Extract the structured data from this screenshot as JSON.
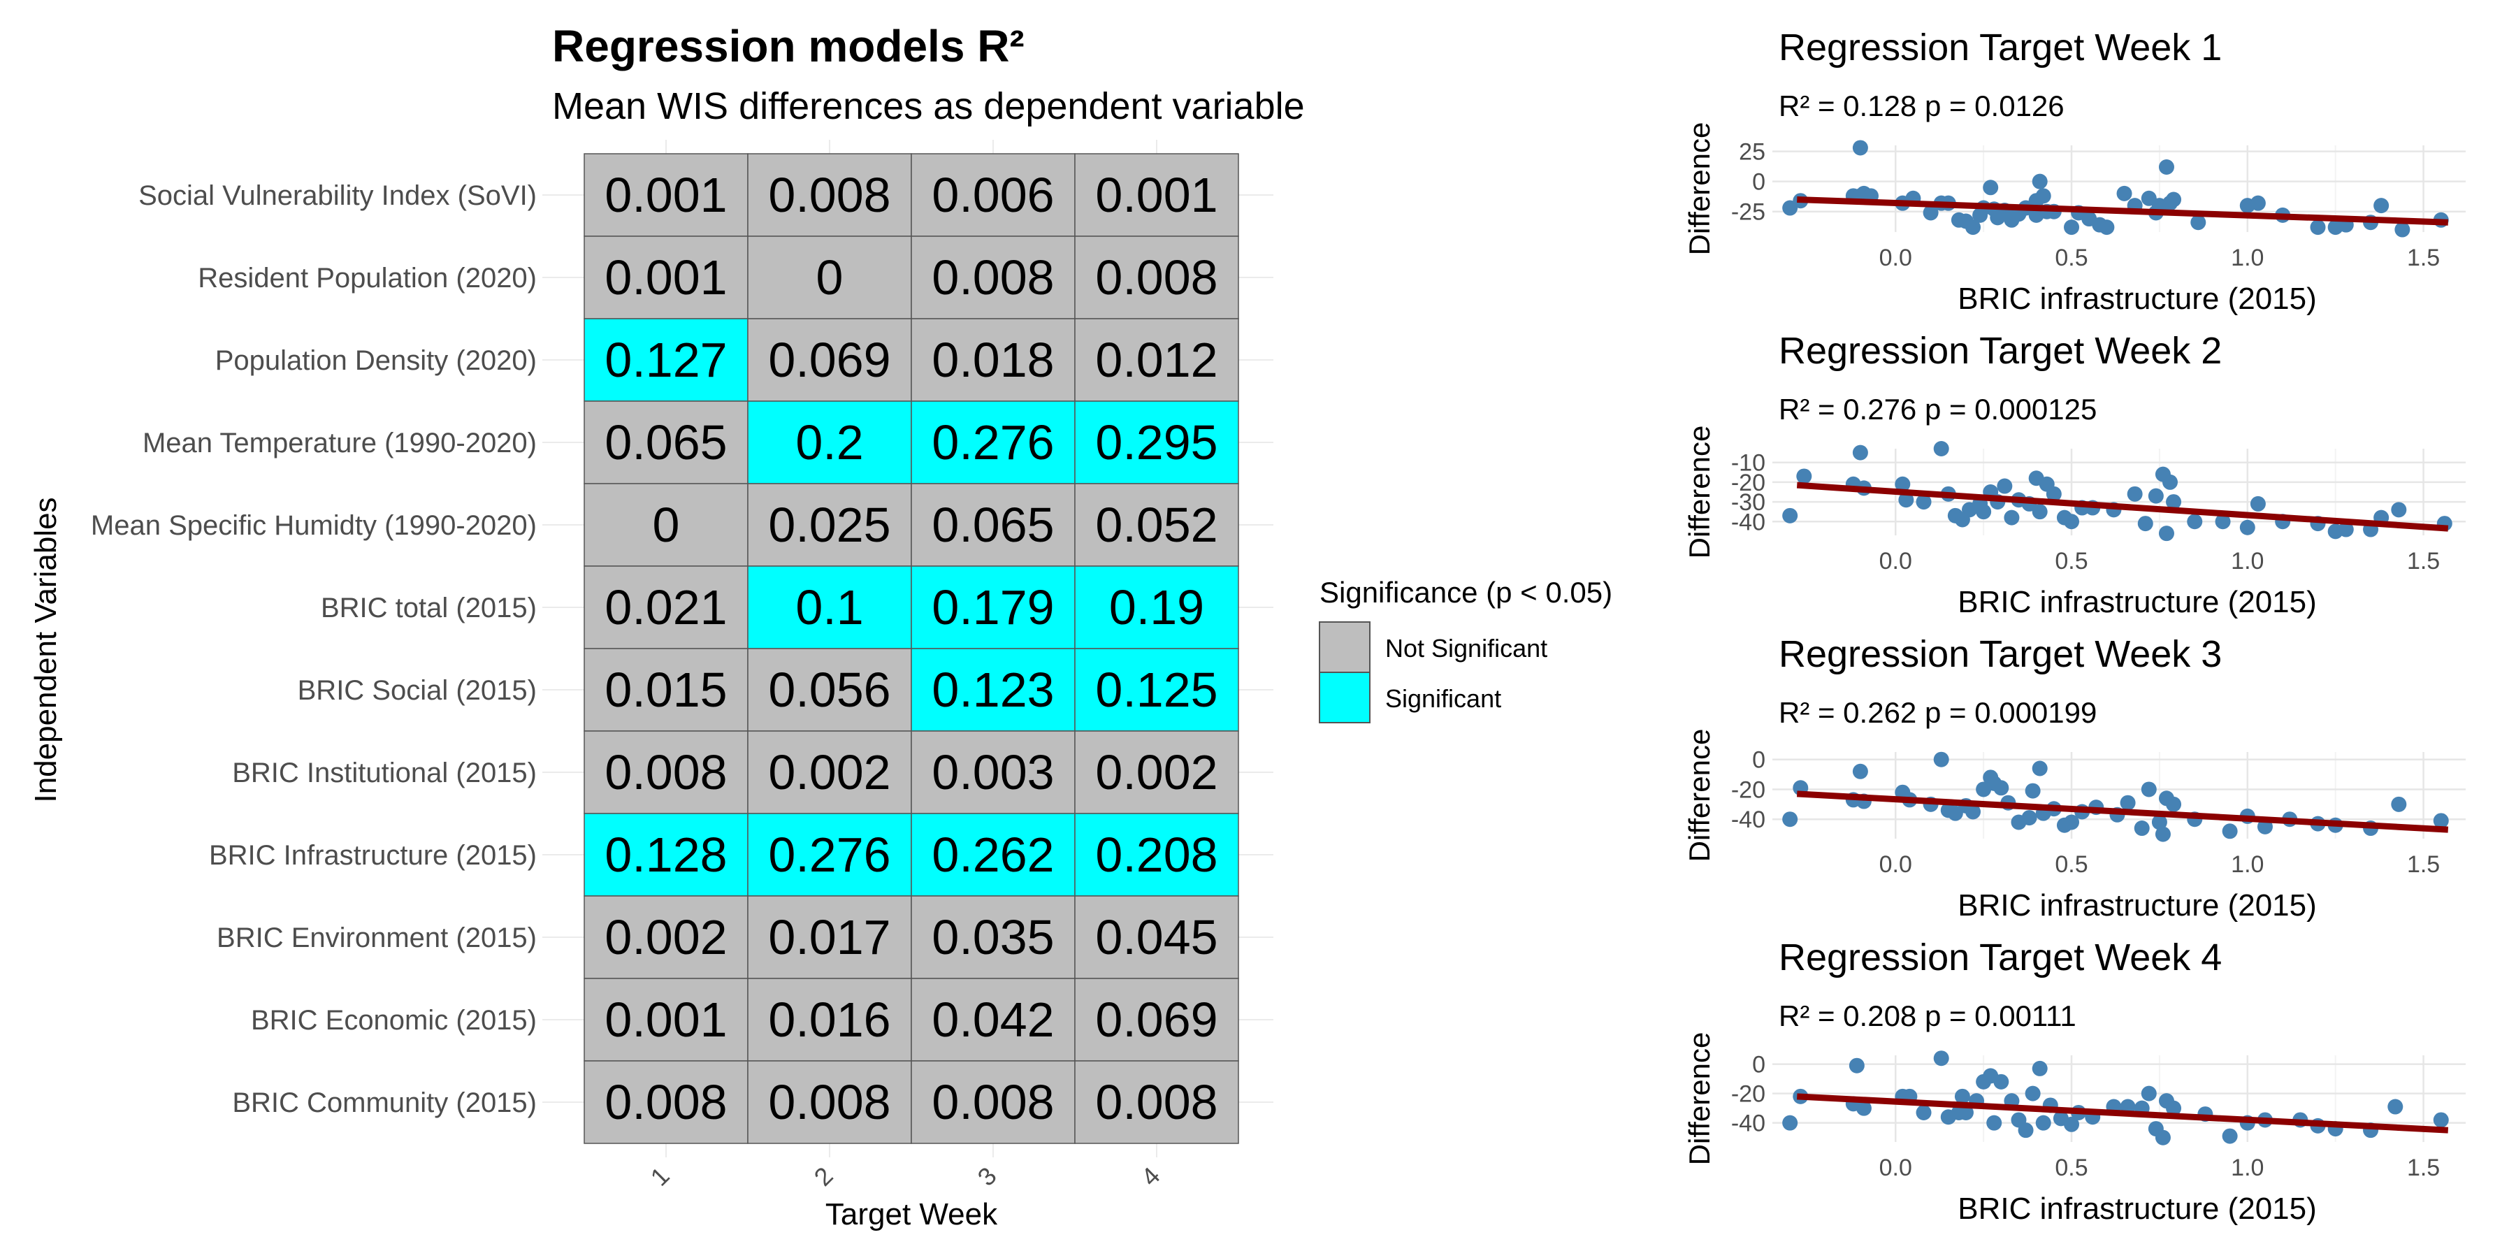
{
  "heatmap": {
    "title": "Regression models R²",
    "subtitle": "Mean WIS differences as dependent variable",
    "ylabel": "Independent Variables",
    "xlabel": "Target Week",
    "legend": {
      "title": "Significance (p < 0.05)",
      "items": [
        {
          "label": "Not Significant",
          "color": "#bebebe"
        },
        {
          "label": "Significant",
          "color": "#00ffff"
        }
      ]
    }
  },
  "chart_data": [
    {
      "type": "heatmap",
      "title": "Regression models R²",
      "subtitle": "Mean WIS differences as dependent variable",
      "xlabel": "Target Week",
      "ylabel": "Independent Variables",
      "x": [
        "1",
        "2",
        "3",
        "4"
      ],
      "y": [
        "Social Vulnerability Index (SoVI)",
        "Resident Population (2020)",
        "Population Density (2020)",
        "Mean Temperature (1990-2020)",
        "Mean Specific Humidty (1990-2020)",
        "BRIC total (2015)",
        "BRIC Social (2015)",
        "BRIC Institutional (2015)",
        "BRIC Infrastructure (2015)",
        "BRIC Environment (2015)",
        "BRIC Economic (2015)",
        "BRIC Community (2015)"
      ],
      "labels": [
        [
          "0.001",
          "0.008",
          "0.006",
          "0.001"
        ],
        [
          "0.001",
          "0",
          "0.008",
          "0.008"
        ],
        [
          "0.127",
          "0.069",
          "0.018",
          "0.012"
        ],
        [
          "0.065",
          "0.2",
          "0.276",
          "0.295"
        ],
        [
          "0",
          "0.025",
          "0.065",
          "0.052"
        ],
        [
          "0.021",
          "0.1",
          "0.179",
          "0.19"
        ],
        [
          "0.015",
          "0.056",
          "0.123",
          "0.125"
        ],
        [
          "0.008",
          "0.002",
          "0.003",
          "0.002"
        ],
        [
          "0.128",
          "0.276",
          "0.262",
          "0.208"
        ],
        [
          "0.002",
          "0.017",
          "0.035",
          "0.045"
        ],
        [
          "0.001",
          "0.016",
          "0.042",
          "0.069"
        ],
        [
          "0.008",
          "0.008",
          "0.008",
          "0.008"
        ]
      ],
      "significant": [
        [
          0,
          0,
          0,
          0
        ],
        [
          0,
          0,
          0,
          0
        ],
        [
          1,
          0,
          0,
          0
        ],
        [
          0,
          1,
          1,
          1
        ],
        [
          0,
          0,
          0,
          0
        ],
        [
          0,
          1,
          1,
          1
        ],
        [
          0,
          0,
          1,
          1
        ],
        [
          0,
          0,
          0,
          0
        ],
        [
          1,
          1,
          1,
          1
        ],
        [
          0,
          0,
          0,
          0
        ],
        [
          0,
          0,
          0,
          0
        ],
        [
          0,
          0,
          0,
          0
        ]
      ]
    },
    {
      "type": "scatter",
      "title": "Regression Target Week 1",
      "annotation": "R² = 0.128   p = 0.0126",
      "xlabel": "BRIC infrastructure (2015)",
      "ylabel": "Difference",
      "xlim": [
        -0.35,
        1.62
      ],
      "ylim": [
        -42,
        30
      ],
      "xticks": [
        0.0,
        0.5,
        1.0,
        1.5
      ],
      "yticks": [
        25,
        0,
        -25
      ],
      "fit": {
        "x0": -0.28,
        "y0": -15,
        "x1": 1.57,
        "y1": -34
      },
      "points": [
        [
          -0.3,
          -22
        ],
        [
          -0.27,
          -16
        ],
        [
          -0.12,
          -12
        ],
        [
          -0.09,
          -10
        ],
        [
          -0.1,
          28
        ],
        [
          -0.1,
          -12
        ],
        [
          -0.07,
          -12
        ],
        [
          0.02,
          -18
        ],
        [
          0.05,
          -14
        ],
        [
          0.1,
          -26
        ],
        [
          0.13,
          -18
        ],
        [
          0.15,
          -18
        ],
        [
          0.18,
          -32
        ],
        [
          0.2,
          -33
        ],
        [
          0.22,
          -38
        ],
        [
          0.24,
          -28
        ],
        [
          0.25,
          -22
        ],
        [
          0.27,
          -5
        ],
        [
          0.28,
          -23
        ],
        [
          0.29,
          -30
        ],
        [
          0.31,
          -24
        ],
        [
          0.33,
          -32
        ],
        [
          0.35,
          -27
        ],
        [
          0.37,
          -22
        ],
        [
          0.4,
          -28
        ],
        [
          0.4,
          -16
        ],
        [
          0.41,
          0
        ],
        [
          0.42,
          -12
        ],
        [
          0.43,
          -25
        ],
        [
          0.45,
          -25
        ],
        [
          0.5,
          -38
        ],
        [
          0.52,
          -26
        ],
        [
          0.55,
          -31
        ],
        [
          0.58,
          -36
        ],
        [
          0.6,
          -38
        ],
        [
          0.65,
          -10
        ],
        [
          0.68,
          -20
        ],
        [
          0.72,
          -14
        ],
        [
          0.74,
          -26
        ],
        [
          0.75,
          -20
        ],
        [
          0.77,
          12
        ],
        [
          0.78,
          -18
        ],
        [
          0.79,
          -15
        ],
        [
          0.86,
          -34
        ],
        [
          1.0,
          -20
        ],
        [
          1.03,
          -18
        ],
        [
          1.1,
          -28
        ],
        [
          1.2,
          -38
        ],
        [
          1.25,
          -38
        ],
        [
          1.28,
          -36
        ],
        [
          1.35,
          -34
        ],
        [
          1.38,
          -20
        ],
        [
          1.44,
          -40
        ],
        [
          1.55,
          -32
        ]
      ]
    },
    {
      "type": "scatter",
      "title": "Regression Target Week 2",
      "annotation": "R² = 0.276   p = 0.000125",
      "xlabel": "BRIC infrastructure (2015)",
      "ylabel": "Difference",
      "xlim": [
        -0.35,
        1.62
      ],
      "ylim": [
        -47,
        -3
      ],
      "xticks": [
        0.0,
        0.5,
        1.0,
        1.5
      ],
      "yticks": [
        -10,
        -20,
        -30,
        -40
      ],
      "fit": {
        "x0": -0.28,
        "y0": -21.5,
        "x1": 1.57,
        "y1": -43.5
      },
      "points": [
        [
          -0.3,
          -37
        ],
        [
          -0.26,
          -17
        ],
        [
          -0.12,
          -21
        ],
        [
          -0.1,
          -5
        ],
        [
          -0.09,
          -23
        ],
        [
          0.02,
          -21
        ],
        [
          0.03,
          -29
        ],
        [
          0.08,
          -30
        ],
        [
          0.13,
          -3
        ],
        [
          0.15,
          -26
        ],
        [
          0.17,
          -37
        ],
        [
          0.19,
          -39
        ],
        [
          0.21,
          -34
        ],
        [
          0.24,
          -31
        ],
        [
          0.25,
          -35
        ],
        [
          0.27,
          -25
        ],
        [
          0.29,
          -30
        ],
        [
          0.31,
          -22
        ],
        [
          0.33,
          -38
        ],
        [
          0.35,
          -29
        ],
        [
          0.38,
          -31
        ],
        [
          0.4,
          -18
        ],
        [
          0.41,
          -35
        ],
        [
          0.43,
          -21
        ],
        [
          0.45,
          -26
        ],
        [
          0.48,
          -38
        ],
        [
          0.5,
          -40
        ],
        [
          0.53,
          -33
        ],
        [
          0.56,
          -33
        ],
        [
          0.62,
          -34
        ],
        [
          0.68,
          -26
        ],
        [
          0.71,
          -41
        ],
        [
          0.74,
          -27
        ],
        [
          0.76,
          -16
        ],
        [
          0.77,
          -46
        ],
        [
          0.78,
          -20
        ],
        [
          0.79,
          -30
        ],
        [
          0.85,
          -40
        ],
        [
          0.93,
          -40
        ],
        [
          1.0,
          -43
        ],
        [
          1.03,
          -31
        ],
        [
          1.1,
          -40
        ],
        [
          1.2,
          -41
        ],
        [
          1.25,
          -45
        ],
        [
          1.28,
          -44
        ],
        [
          1.35,
          -44
        ],
        [
          1.38,
          -38
        ],
        [
          1.43,
          -34
        ],
        [
          1.56,
          -41
        ]
      ]
    },
    {
      "type": "scatter",
      "title": "Regression Target Week 3",
      "annotation": "R² = 0.262   p = 0.000199",
      "xlabel": "BRIC infrastructure (2015)",
      "ylabel": "Difference",
      "xlim": [
        -0.35,
        1.62
      ],
      "ylim": [
        -53,
        5
      ],
      "xticks": [
        0.0,
        0.5,
        1.0,
        1.5
      ],
      "yticks": [
        0,
        -20,
        -40
      ],
      "fit": {
        "x0": -0.28,
        "y0": -23,
        "x1": 1.57,
        "y1": -47
      },
      "points": [
        [
          -0.3,
          -40
        ],
        [
          -0.27,
          -19
        ],
        [
          -0.12,
          -27
        ],
        [
          -0.1,
          -8
        ],
        [
          -0.09,
          -28
        ],
        [
          0.02,
          -22
        ],
        [
          0.04,
          -27
        ],
        [
          0.1,
          -30
        ],
        [
          0.13,
          0
        ],
        [
          0.15,
          -34
        ],
        [
          0.17,
          -36
        ],
        [
          0.2,
          -31
        ],
        [
          0.22,
          -35
        ],
        [
          0.25,
          -20
        ],
        [
          0.27,
          -12
        ],
        [
          0.28,
          -16
        ],
        [
          0.3,
          -19
        ],
        [
          0.32,
          -29
        ],
        [
          0.35,
          -42
        ],
        [
          0.38,
          -39
        ],
        [
          0.39,
          -21
        ],
        [
          0.41,
          -6
        ],
        [
          0.42,
          -36
        ],
        [
          0.45,
          -33
        ],
        [
          0.48,
          -44
        ],
        [
          0.5,
          -42
        ],
        [
          0.53,
          -35
        ],
        [
          0.57,
          -32
        ],
        [
          0.63,
          -37
        ],
        [
          0.66,
          -29
        ],
        [
          0.7,
          -46
        ],
        [
          0.72,
          -20
        ],
        [
          0.75,
          -42
        ],
        [
          0.76,
          -50
        ],
        [
          0.77,
          -26
        ],
        [
          0.79,
          -30
        ],
        [
          0.85,
          -40
        ],
        [
          0.95,
          -48
        ],
        [
          1.0,
          -38
        ],
        [
          1.05,
          -45
        ],
        [
          1.12,
          -40
        ],
        [
          1.2,
          -43
        ],
        [
          1.25,
          -44
        ],
        [
          1.35,
          -46
        ],
        [
          1.43,
          -30
        ],
        [
          1.55,
          -41
        ]
      ]
    },
    {
      "type": "scatter",
      "title": "Regression Target Week 4",
      "annotation": "R² = 0.208   p = 0.00111",
      "xlabel": "BRIC infrastructure (2015)",
      "ylabel": "Difference",
      "xlim": [
        -0.35,
        1.62
      ],
      "ylim": [
        -53,
        6
      ],
      "xticks": [
        0.0,
        0.5,
        1.0,
        1.5
      ],
      "yticks": [
        0,
        -20,
        -40
      ],
      "fit": {
        "x0": -0.28,
        "y0": -22,
        "x1": 1.57,
        "y1": -45
      },
      "points": [
        [
          -0.3,
          -40
        ],
        [
          -0.27,
          -22
        ],
        [
          -0.12,
          -27
        ],
        [
          -0.11,
          -1
        ],
        [
          -0.09,
          -30
        ],
        [
          0.02,
          -22
        ],
        [
          0.04,
          -22
        ],
        [
          0.08,
          -33
        ],
        [
          0.13,
          4
        ],
        [
          0.15,
          -36
        ],
        [
          0.18,
          -33
        ],
        [
          0.19,
          -22
        ],
        [
          0.2,
          -33
        ],
        [
          0.23,
          -25
        ],
        [
          0.25,
          -12
        ],
        [
          0.27,
          -8
        ],
        [
          0.28,
          -40
        ],
        [
          0.3,
          -12
        ],
        [
          0.33,
          -25
        ],
        [
          0.35,
          -38
        ],
        [
          0.37,
          -45
        ],
        [
          0.39,
          -20
        ],
        [
          0.41,
          -3
        ],
        [
          0.42,
          -40
        ],
        [
          0.44,
          -28
        ],
        [
          0.47,
          -37
        ],
        [
          0.5,
          -41
        ],
        [
          0.52,
          -33
        ],
        [
          0.56,
          -36
        ],
        [
          0.62,
          -29
        ],
        [
          0.66,
          -29
        ],
        [
          0.7,
          -30
        ],
        [
          0.72,
          -20
        ],
        [
          0.74,
          -44
        ],
        [
          0.76,
          -50
        ],
        [
          0.77,
          -25
        ],
        [
          0.79,
          -30
        ],
        [
          0.88,
          -34
        ],
        [
          0.95,
          -49
        ],
        [
          1.0,
          -40
        ],
        [
          1.05,
          -38
        ],
        [
          1.15,
          -38
        ],
        [
          1.2,
          -42
        ],
        [
          1.25,
          -44
        ],
        [
          1.35,
          -45
        ],
        [
          1.42,
          -29
        ],
        [
          1.55,
          -38
        ]
      ]
    }
  ]
}
